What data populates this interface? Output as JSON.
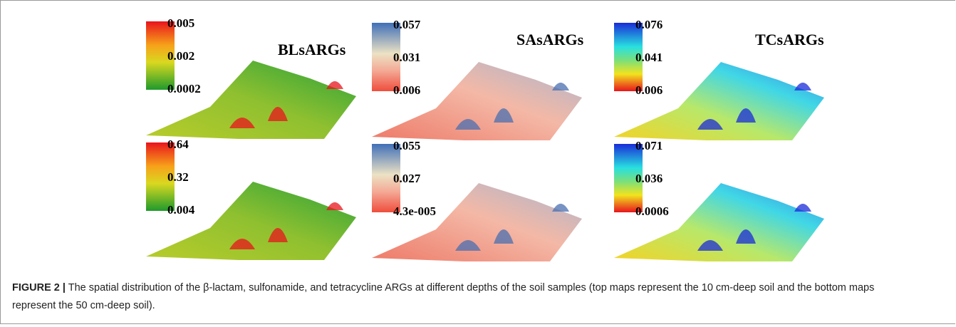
{
  "figure": {
    "panels": [
      {
        "title": "BLsARGs",
        "scale": [
          "0.005",
          "0.002",
          "0.0002"
        ]
      },
      {
        "title": "SAsARGs",
        "scale": [
          "0.057",
          "0.031",
          "0.006"
        ]
      },
      {
        "title": "TCsARGs",
        "scale": [
          "0.076",
          "0.041",
          "0.006"
        ]
      },
      {
        "scale": [
          "0.64",
          "0.32",
          "0.004"
        ]
      },
      {
        "scale": [
          "0.055",
          "0.027",
          "4.3e-005"
        ]
      },
      {
        "scale": [
          "0.071",
          "0.036",
          "0.0006"
        ]
      }
    ]
  },
  "caption": {
    "label": "FIGURE 2 |",
    "text": "The spatial distribution of the β-lactam, sulfonamide, and tetracycline ARGs at different depths of the soil samples (top maps represent the 10 cm-deep soil and the bottom maps represent the 50 cm-deep soil)."
  }
}
